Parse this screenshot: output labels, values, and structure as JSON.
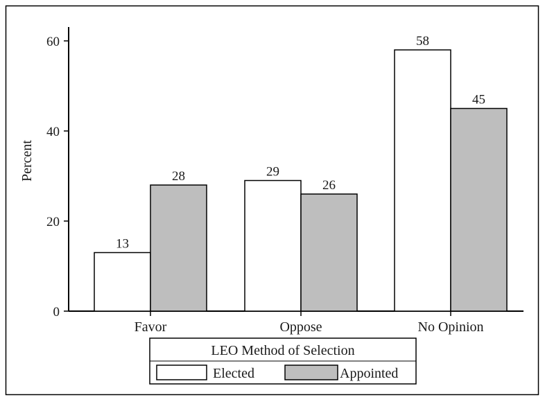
{
  "chart_data": {
    "type": "bar",
    "title": "",
    "xlabel": "",
    "ylabel": "Percent",
    "ylim": [
      0,
      60
    ],
    "yticks": [
      0,
      20,
      40,
      60
    ],
    "categories": [
      "Favor",
      "Oppose",
      "No Opinion"
    ],
    "series": [
      {
        "name": "Elected",
        "values": [
          13,
          29,
          58
        ],
        "color": "#ffffff"
      },
      {
        "name": "Appointed",
        "values": [
          28,
          26,
          45
        ],
        "color": "#bebebe"
      }
    ],
    "legend": {
      "title": "LEO Method of Selection",
      "placement": "bottom"
    },
    "grid": false
  }
}
